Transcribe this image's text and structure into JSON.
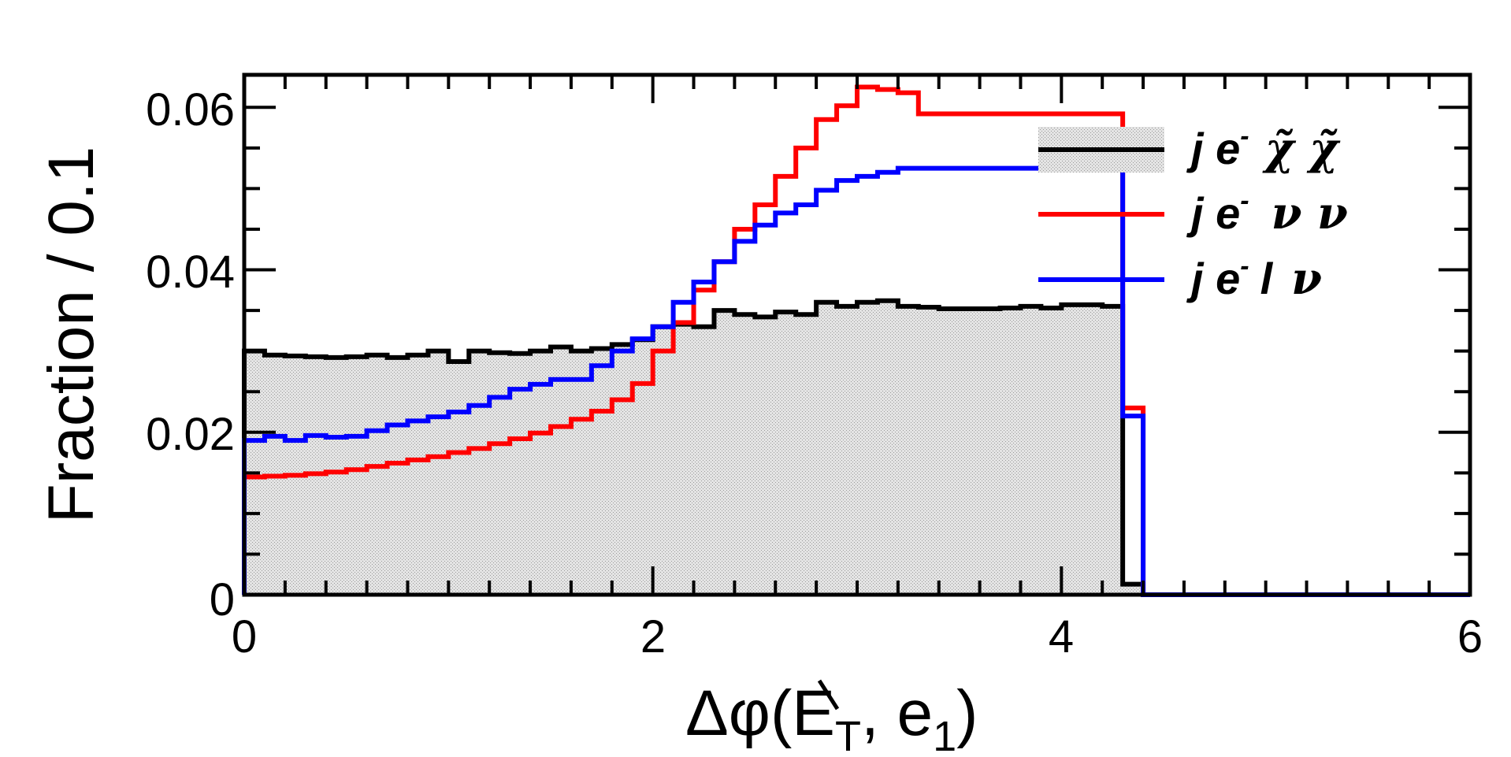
{
  "chart_data": {
    "type": "histogram",
    "xlabel": "Δφ(E̸T, e1)",
    "xlabel_main": "Δφ(E",
    "xlabel_sub_T": "T",
    "xlabel_sep": ", e",
    "xlabel_sub_1": "1",
    "xlabel_close": ")",
    "ylabel": "Fraction / 0.1",
    "xlim": [
      0,
      6
    ],
    "ylim": [
      0,
      0.064
    ],
    "x_ticks": [
      "0",
      "2",
      "4",
      "6"
    ],
    "y_ticks": [
      "0",
      "0.02",
      "0.04",
      "0.06"
    ],
    "bin_width": 0.1,
    "series": [
      {
        "name": "j e- χ̃ χ̃",
        "legend": {
          "pre": "j e",
          "sup": "-",
          "greek": "χ̃  χ̃"
        },
        "color": "#000000",
        "fill": "#d0d0d0",
        "values": [
          0.03,
          0.0295,
          0.0294,
          0.0293,
          0.0292,
          0.0293,
          0.0295,
          0.0292,
          0.0295,
          0.03,
          0.0287,
          0.03,
          0.0298,
          0.0297,
          0.03,
          0.0305,
          0.03,
          0.0303,
          0.0308,
          0.0314,
          0.033,
          0.0333,
          0.033,
          0.035,
          0.0345,
          0.0342,
          0.0348,
          0.0345,
          0.036,
          0.0355,
          0.036,
          0.0362,
          0.0355,
          0.0354,
          0.0352,
          0.0352,
          0.0352,
          0.0353,
          0.0355,
          0.0353,
          0.0357,
          0.0357,
          0.0355,
          0.0013,
          0.0,
          0.0,
          0.0,
          0.0,
          0.0,
          0.0,
          0.0,
          0.0,
          0.0,
          0.0,
          0.0,
          0.0,
          0.0,
          0.0,
          0.0,
          0.0
        ]
      },
      {
        "name": "j e- ν ν",
        "legend": {
          "pre": "j e",
          "sup": "-",
          "greek": "ν  ν"
        },
        "color": "#ff0000",
        "values": [
          0.0145,
          0.0146,
          0.0147,
          0.0149,
          0.0151,
          0.0154,
          0.0158,
          0.0162,
          0.0166,
          0.017,
          0.0175,
          0.018,
          0.0186,
          0.0192,
          0.0199,
          0.0207,
          0.0216,
          0.0226,
          0.024,
          0.026,
          0.03,
          0.0335,
          0.0375,
          0.041,
          0.045,
          0.048,
          0.0515,
          0.055,
          0.0585,
          0.0602,
          0.0625,
          0.0622,
          0.0618,
          0.0592,
          0.0592,
          0.0592,
          0.0592,
          0.0592,
          0.0592,
          0.0592,
          0.0592,
          0.0592,
          0.0592,
          0.023,
          0.0,
          0.0,
          0.0,
          0.0,
          0.0,
          0.0,
          0.0,
          0.0,
          0.0,
          0.0,
          0.0,
          0.0,
          0.0,
          0.0,
          0.0,
          0.0
        ]
      },
      {
        "name": "j e- l ν",
        "legend": {
          "pre": "j e",
          "sup": "-",
          "mid": "l",
          "greek": "ν"
        },
        "color": "#0000ff",
        "values": [
          0.019,
          0.0195,
          0.019,
          0.0196,
          0.0194,
          0.0195,
          0.0202,
          0.0209,
          0.0214,
          0.0219,
          0.0225,
          0.0233,
          0.0243,
          0.0253,
          0.0259,
          0.0265,
          0.0265,
          0.0282,
          0.03,
          0.0315,
          0.033,
          0.036,
          0.0385,
          0.041,
          0.0435,
          0.0455,
          0.047,
          0.048,
          0.0498,
          0.051,
          0.0515,
          0.052,
          0.0525,
          0.0525,
          0.0525,
          0.0525,
          0.0525,
          0.0525,
          0.0525,
          0.0525,
          0.0525,
          0.0525,
          0.0525,
          0.022,
          0.0,
          0.0,
          0.0,
          0.0,
          0.0,
          0.0,
          0.0,
          0.0,
          0.0,
          0.0,
          0.0,
          0.0,
          0.0,
          0.0,
          0.0,
          0.0
        ]
      }
    ],
    "legend_position": "top-right",
    "grid": false
  }
}
